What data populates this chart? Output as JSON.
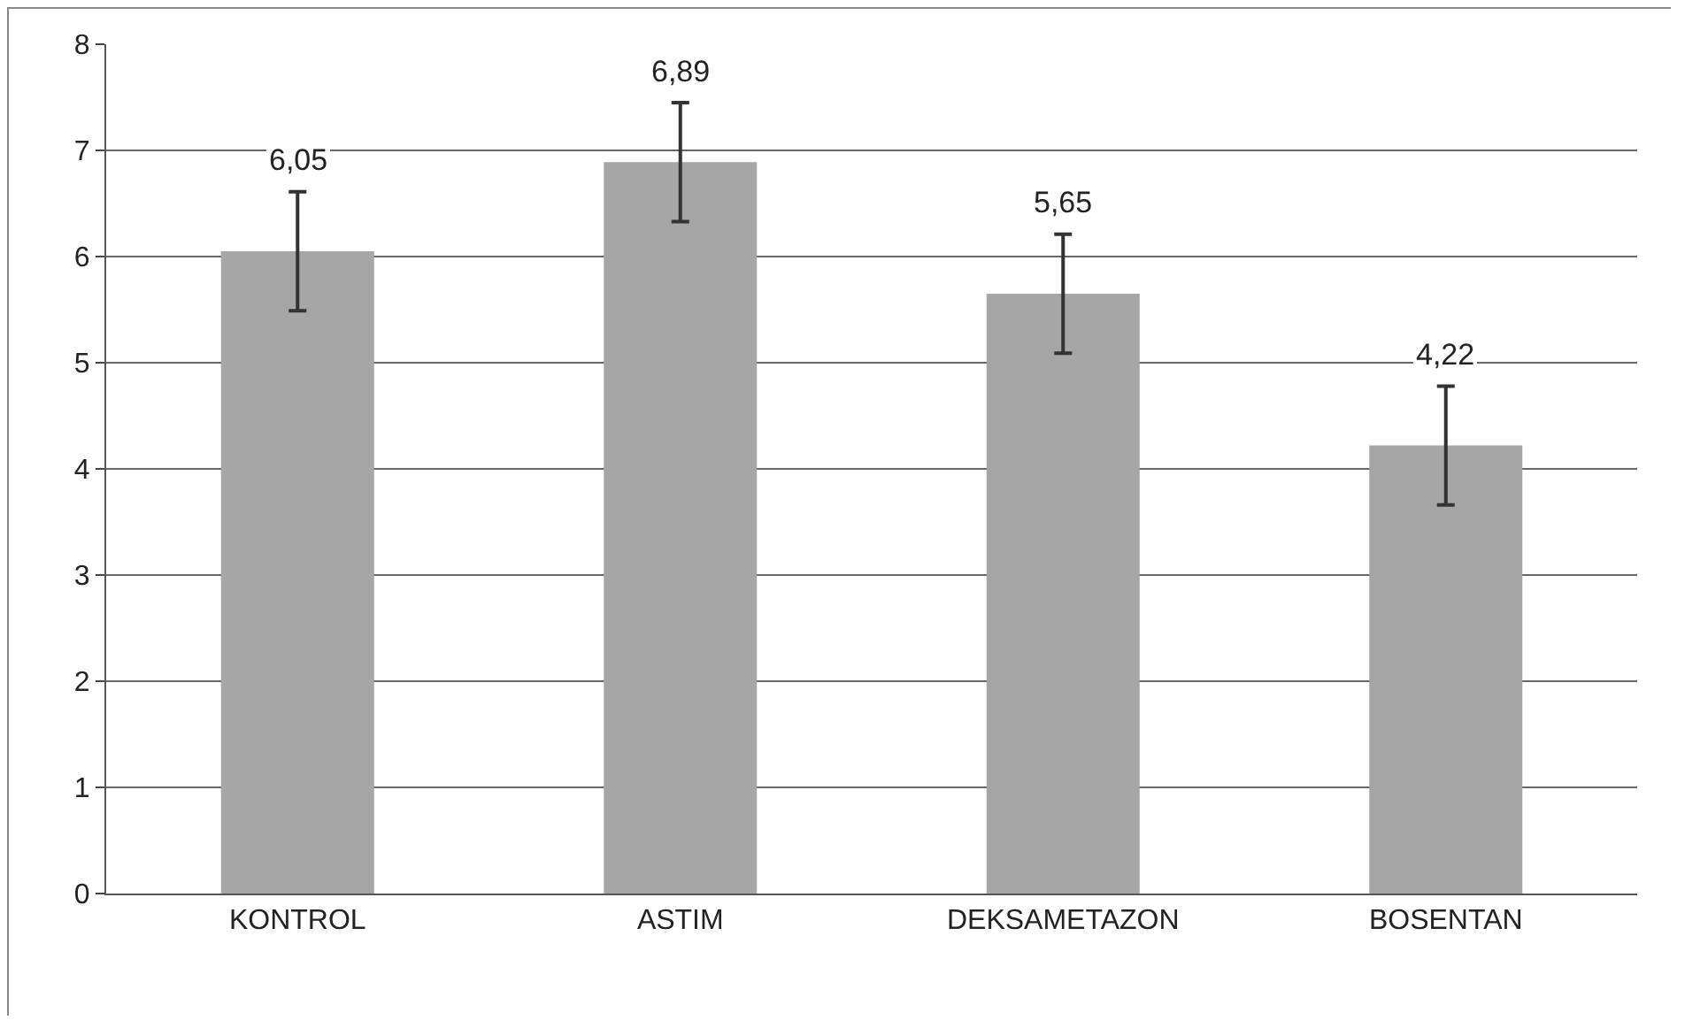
{
  "chart_data": {
    "type": "bar",
    "categories": [
      "KONTROL",
      "ASTIM",
      "DEKSAMETAZON",
      "BOSENTAN"
    ],
    "values": [
      6.05,
      6.89,
      5.65,
      4.22
    ],
    "value_labels": [
      "6,05",
      "6,89",
      "5,65",
      "4,22"
    ],
    "errors": [
      0.56,
      0.56,
      0.56,
      0.56
    ],
    "color": "#a6a6a6",
    "ylim": [
      0,
      8
    ],
    "yticks": [
      0,
      1,
      2,
      3,
      4,
      5,
      6,
      7,
      8
    ],
    "grid": "y"
  }
}
